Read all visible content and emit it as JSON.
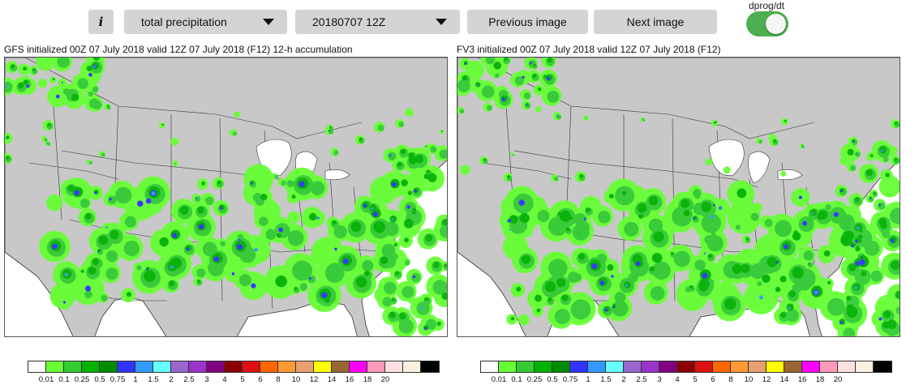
{
  "toolbar": {
    "info_label": "i",
    "field_select": "total precipitation",
    "time_select": "20180707 12Z",
    "prev_label": "Previous image",
    "next_label": "Next image",
    "toggle_label": "dprog/dt",
    "toggle_on": true,
    "toggle_color": "#4caf50"
  },
  "panels": [
    {
      "title": "GFS initialized 00Z 07 July 2018 valid 12Z 07 July 2018 (F12) 12-h accumulation"
    },
    {
      "title": "FV3 initialized 00Z 07 July 2018 valid 12Z 07 July 2018 (F12)"
    }
  ],
  "map_colors": {
    "land": "#c8c8c8",
    "borders": "#333333",
    "lakes": "#ffffff"
  },
  "colorbar": {
    "colors": [
      "#ffffff",
      "#66ff33",
      "#33cc33",
      "#00b300",
      "#008c00",
      "#3333ff",
      "#3399ff",
      "#66ffff",
      "#9966cc",
      "#9933cc",
      "#800080",
      "#8b0000",
      "#dd1111",
      "#ff6600",
      "#ff9933",
      "#e8a070",
      "#ffff00",
      "#996633",
      "#ff00ff",
      "#ff99bb",
      "#ffe0e0",
      "#faf0e0",
      "#000000"
    ],
    "labels": [
      "0.01",
      "0.1",
      "0.25",
      "0.5",
      "0.75",
      "1",
      "1.5",
      "2",
      "2.5",
      "3",
      "4",
      "5",
      "6",
      "8",
      "10",
      "12",
      "14",
      "16",
      "18",
      "20"
    ]
  }
}
